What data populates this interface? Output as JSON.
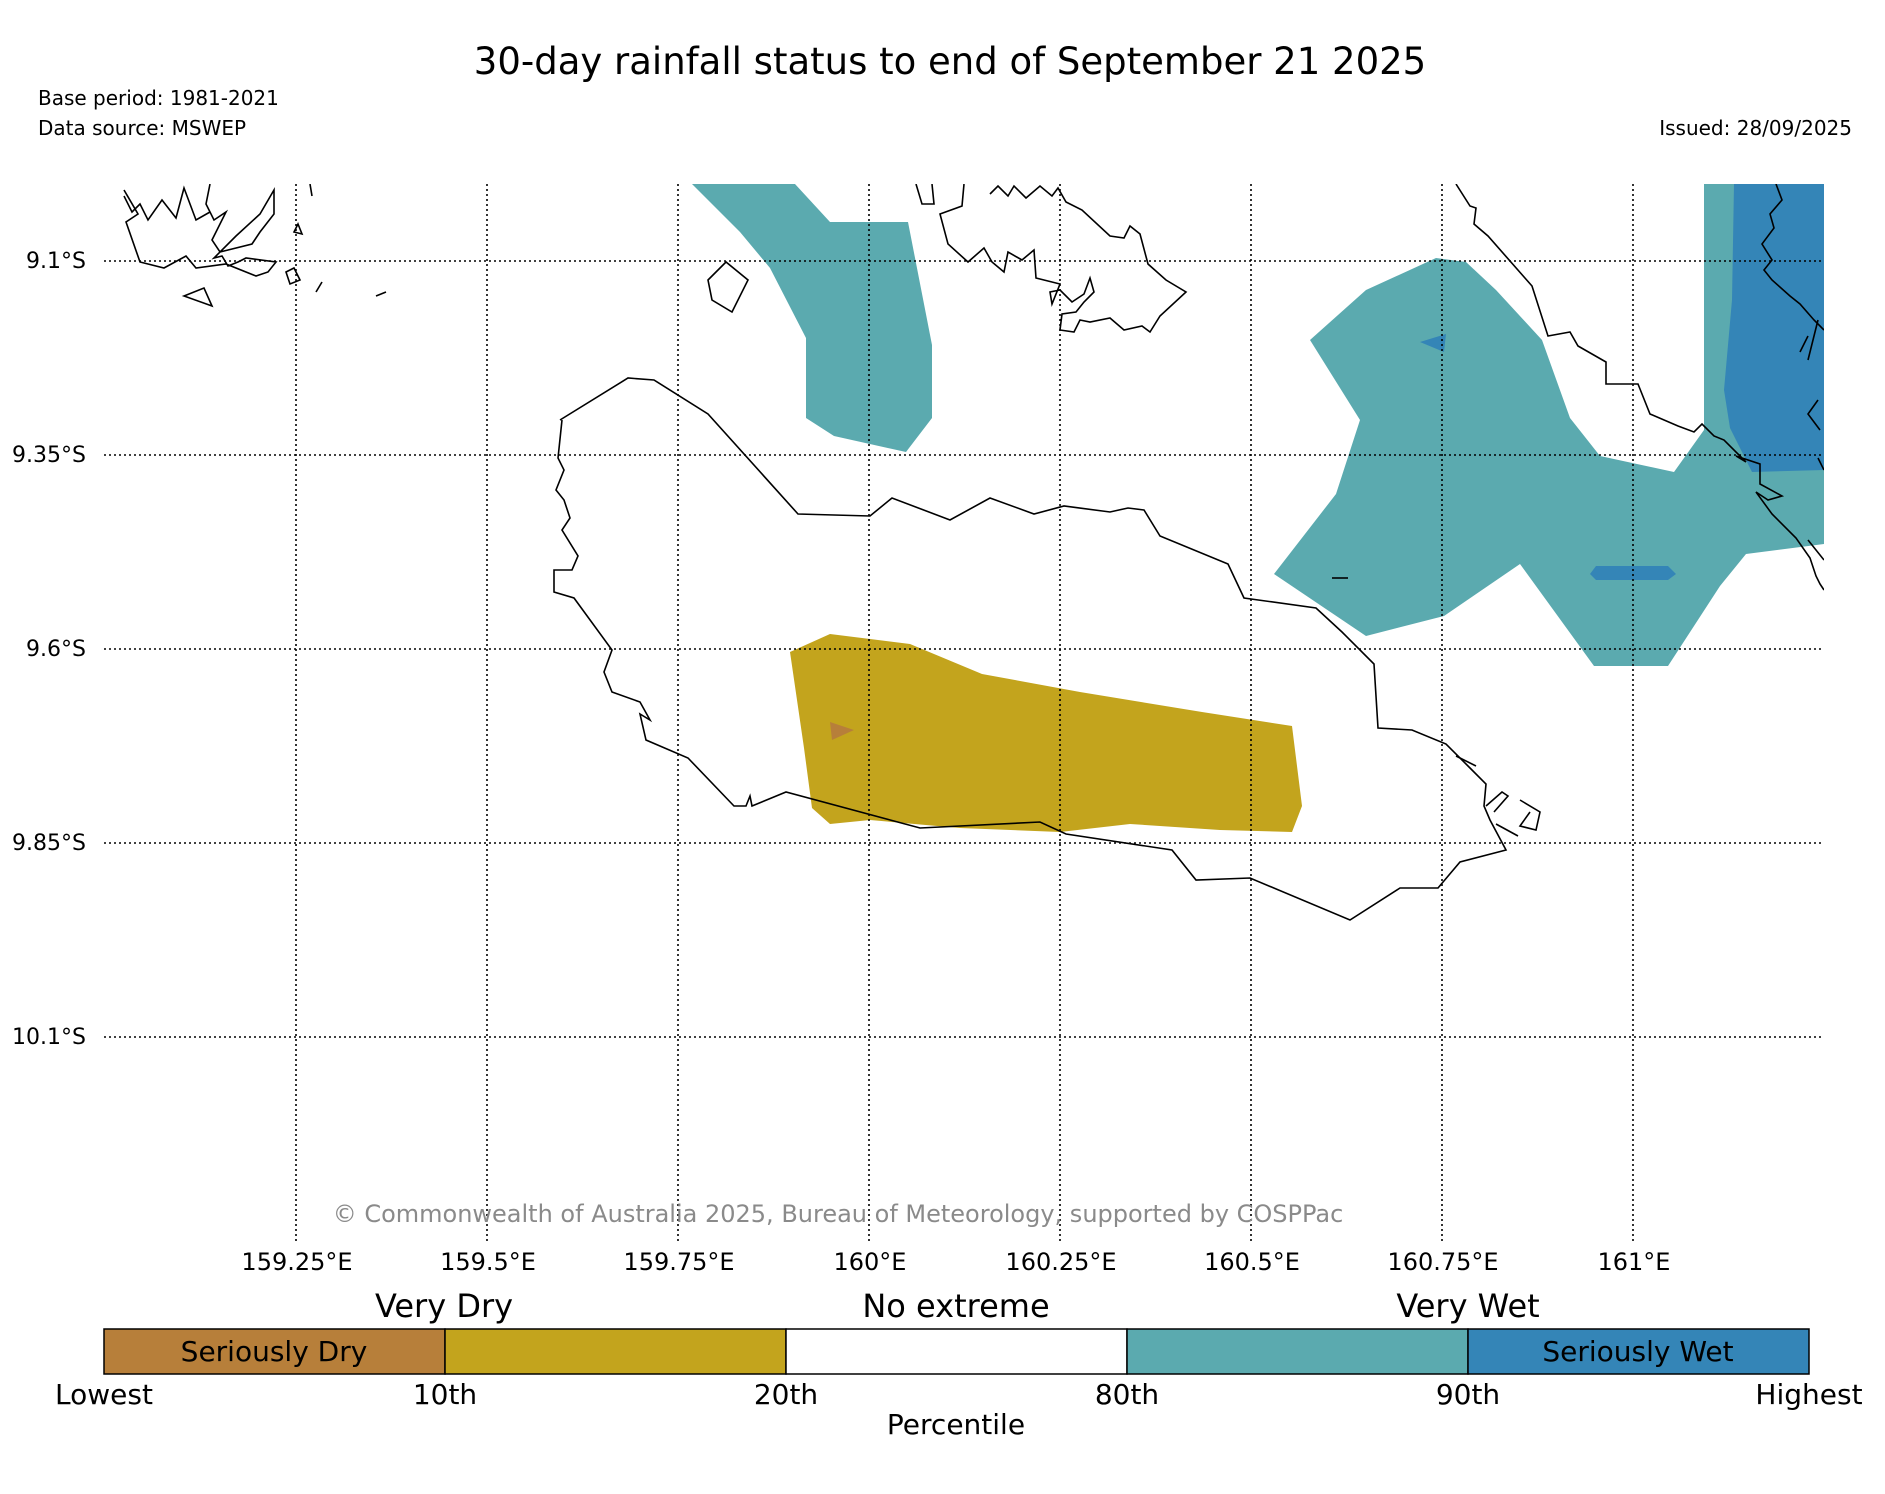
{
  "title": "30-day rainfall status to end of September 21 2025",
  "base_period": "Base period: 1981-2021",
  "data_source": "Data source: MSWEP",
  "issued": "Issued: 28/09/2025",
  "copyright": "© Commonwealth of Australia 2025, Bureau of Meteorology, supported by COSPPac",
  "lat_labels": [
    "9.1°S",
    "9.35°S",
    "9.6°S",
    "9.85°S",
    "10.1°S"
  ],
  "lon_labels": [
    "159.25°E",
    "159.5°E",
    "159.75°E",
    "160°E",
    "160.25°E",
    "160.5°E",
    "160.75°E",
    "161°E"
  ],
  "legend": {
    "headings": [
      "Very Dry",
      "No extreme",
      "Very Wet"
    ],
    "segments": [
      {
        "label": "Seriously Dry",
        "color": "#b77f3a"
      },
      {
        "label": "",
        "color": "#c3a41d"
      },
      {
        "label": "",
        "color": "#ffffff"
      },
      {
        "label": "",
        "color": "#5baaaf"
      },
      {
        "label": "Seriously Wet",
        "color": "#3485b7"
      }
    ],
    "ticks": [
      "Lowest",
      "10th",
      "20th",
      "80th",
      "90th",
      "Highest"
    ],
    "axis_label": "Percentile"
  },
  "colors": {
    "seriously_dry": "#b77f3a",
    "very_dry": "#c3a41d",
    "very_wet": "#5baaaf",
    "seriously_wet": "#3485b7",
    "copyright_text": "#8a8a8a"
  }
}
